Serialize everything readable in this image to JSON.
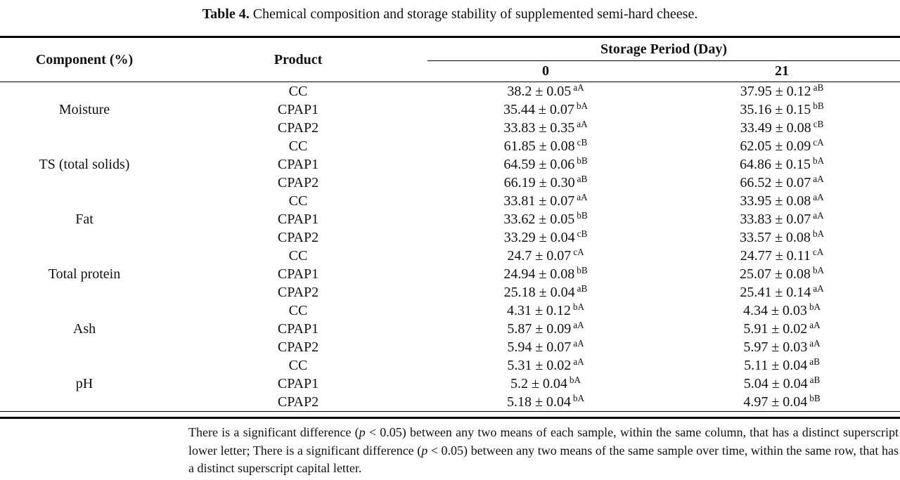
{
  "title": {
    "label": "Table 4.",
    "text": " Chemical composition and storage stability of supplemented semi-hard cheese."
  },
  "table": {
    "col_component": "Component (%)",
    "col_product": "Product",
    "col_storage": "Storage Period (Day)",
    "day_labels": [
      "0",
      "21"
    ],
    "groups": [
      {
        "component": "Moisture",
        "rows": [
          {
            "product": "CC",
            "day0": "38.2 ± 0.05",
            "day0_sup": "aA",
            "day21": "37.95 ± 0.12",
            "day21_sup": "aB"
          },
          {
            "product": "CPAP1",
            "day0": "35.44 ± 0.07",
            "day0_sup": "bA",
            "day21": "35.16 ± 0.15",
            "day21_sup": "bB"
          },
          {
            "product": "CPAP2",
            "day0": "33.83 ± 0.35",
            "day0_sup": "aA",
            "day21": "33.49 ± 0.08",
            "day21_sup": "cB"
          }
        ]
      },
      {
        "component": "TS (total solids)",
        "rows": [
          {
            "product": "CC",
            "day0": "61.85 ± 0.08",
            "day0_sup": "cB",
            "day21": "62.05 ± 0.09",
            "day21_sup": "cA"
          },
          {
            "product": "CPAP1",
            "day0": "64.59 ± 0.06",
            "day0_sup": "bB",
            "day21": "64.86 ± 0.15",
            "day21_sup": "bA"
          },
          {
            "product": "CPAP2",
            "day0": "66.19 ± 0.30",
            "day0_sup": "aB",
            "day21": "66.52 ± 0.07",
            "day21_sup": "aA"
          }
        ]
      },
      {
        "component": "Fat",
        "rows": [
          {
            "product": "CC",
            "day0": "33.81 ± 0.07",
            "day0_sup": "aA",
            "day21": "33.95 ± 0.08",
            "day21_sup": "aA"
          },
          {
            "product": "CPAP1",
            "day0": "33.62 ± 0.05",
            "day0_sup": "bB",
            "day21": "33.83 ± 0.07",
            "day21_sup": "aA"
          },
          {
            "product": "CPAP2",
            "day0": "33.29 ± 0.04",
            "day0_sup": "cB",
            "day21": "33.57 ± 0.08",
            "day21_sup": "bA"
          }
        ]
      },
      {
        "component": "Total protein",
        "rows": [
          {
            "product": "CC",
            "day0": "24.7 ± 0.07",
            "day0_sup": "cA",
            "day21": "24.77 ± 0.11",
            "day21_sup": "cA"
          },
          {
            "product": "CPAP1",
            "day0": "24.94 ± 0.08",
            "day0_sup": "bB",
            "day21": "25.07 ± 0.08",
            "day21_sup": "bA"
          },
          {
            "product": "CPAP2",
            "day0": "25.18 ± 0.04",
            "day0_sup": "aB",
            "day21": "25.41 ± 0.14",
            "day21_sup": "aA"
          }
        ]
      },
      {
        "component": "Ash",
        "rows": [
          {
            "product": "CC",
            "day0": "4.31 ± 0.12",
            "day0_sup": "bA",
            "day21": "4.34 ± 0.03",
            "day21_sup": "bA"
          },
          {
            "product": "CPAP1",
            "day0": "5.87 ± 0.09",
            "day0_sup": "aA",
            "day21": "5.91 ± 0.02",
            "day21_sup": "aA"
          },
          {
            "product": "CPAP2",
            "day0": "5.94 ± 0.07",
            "day0_sup": "aA",
            "day21": "5.97 ± 0.03",
            "day21_sup": "aA"
          }
        ]
      },
      {
        "component": "pH",
        "rows": [
          {
            "product": "CC",
            "day0": "5.31 ± 0.02",
            "day0_sup": "aA",
            "day21": "5.11 ± 0.04",
            "day21_sup": "aB"
          },
          {
            "product": "CPAP1",
            "day0": "5.2 ± 0.04",
            "day0_sup": "bA",
            "day21": "5.04 ± 0.04",
            "day21_sup": "aB"
          },
          {
            "product": "CPAP2",
            "day0": "5.18 ± 0.04",
            "day0_sup": "bA",
            "day21": "4.97 ± 0.04",
            "day21_sup": "bB"
          }
        ]
      }
    ]
  },
  "footnote": {
    "part1": "There is a significant difference (",
    "p1": "p",
    "part2": " < 0.05) between any two means of each sample, within the same column, that has a distinct superscript lower letter; There is a significant difference (",
    "p2": "p",
    "part3": " < 0.05) between any two means of the same sample over time, within the same row, that has a distinct superscript capital letter."
  }
}
